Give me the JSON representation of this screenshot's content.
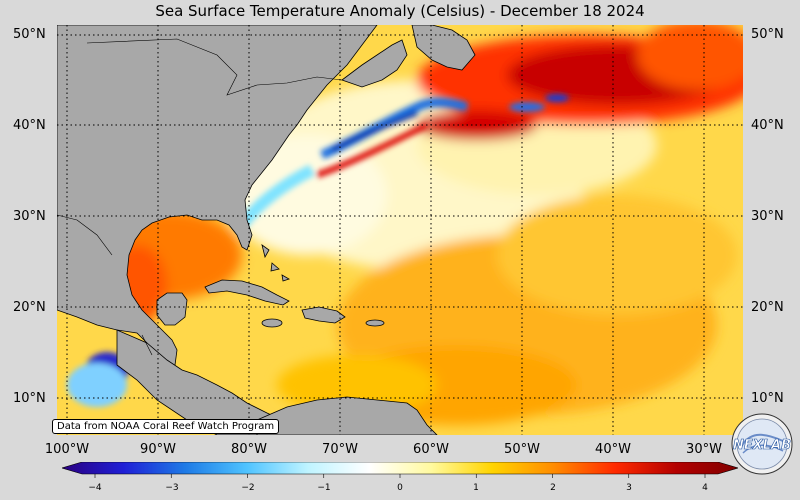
{
  "title": "Sea Surface Temperature Anomaly (Celsius) - December 18 2024",
  "credit": "Data from NOAA Coral Reef Watch Program",
  "lat_labels": [
    "50°N",
    "40°N",
    "30°N",
    "20°N",
    "10°N"
  ],
  "lon_labels": [
    "100°W",
    "90°W",
    "80°W",
    "70°W",
    "60°W",
    "50°W",
    "40°W",
    "30°W"
  ],
  "colorbar": {
    "min": -4,
    "max": 4,
    "ticks": [
      "−4",
      "−3",
      "−2",
      "−1",
      "0",
      "1",
      "2",
      "3",
      "4"
    ],
    "colors": [
      "#2b0080",
      "#1f1fd6",
      "#1e7ae6",
      "#4fc3ff",
      "#bff4ff",
      "#ffffff",
      "#fffaa0",
      "#ffd400",
      "#ff8c00",
      "#ff2a00",
      "#b30000",
      "#800000"
    ]
  },
  "logo": {
    "text": "NEXLAB"
  }
}
